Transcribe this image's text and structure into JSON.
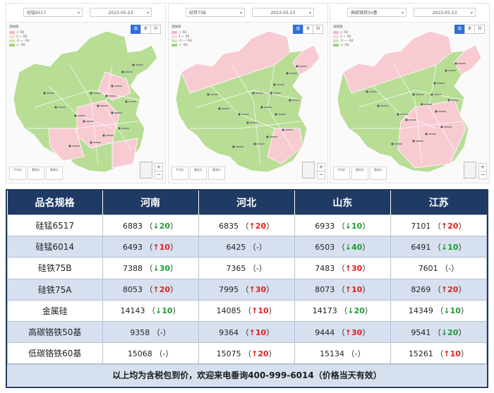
{
  "maps": [
    {
      "product_select": "硅锰6517",
      "date_select": "2023-05-23",
      "view_buttons": [
        "图",
        "表",
        "列"
      ],
      "legend_title": "涨幅值",
      "legend": [
        {
          "label": "> 50",
          "color": "#f4b8c0"
        },
        {
          "label": "1 ~ 50",
          "color": "#fbd9de"
        },
        {
          "label": "-1 ~ -50",
          "color": "#cfe8b4"
        },
        {
          "label": "< -50",
          "color": "#a5d27e"
        }
      ],
      "stats": [
        "平均价",
        "最低价",
        "最高价"
      ]
    },
    {
      "product_select": "硅铁75B",
      "date_select": "2023-05-23",
      "view_buttons": [
        "图",
        "表",
        "列"
      ],
      "legend_title": "涨幅值",
      "legend": [
        {
          "label": "> 50",
          "color": "#f4b8c0"
        },
        {
          "label": "1 ~ 50",
          "color": "#fbd9de"
        },
        {
          "label": "-1 ~ -50",
          "color": "#cfe8b4"
        },
        {
          "label": "< -50",
          "color": "#a5d27e"
        }
      ],
      "stats": [
        "平均价",
        "最低价",
        "最高价"
      ]
    },
    {
      "product_select": "高碳铬铁50基",
      "date_select": "2023-05-23",
      "view_buttons": [
        "图",
        "表",
        "列"
      ],
      "legend_title": "涨幅值",
      "legend": [
        {
          "label": "> 50",
          "color": "#f4b8c0"
        },
        {
          "label": "1 ~ 50",
          "color": "#fbd9de"
        },
        {
          "label": "-1 ~ -50",
          "color": "#cfe8b4"
        },
        {
          "label": "< -50",
          "color": "#a5d27e"
        }
      ],
      "stats": [
        "平均价",
        "最低价",
        "最高价"
      ]
    }
  ],
  "chart_data": {
    "type": "table",
    "columns": [
      "品名规格",
      "河南",
      "河北",
      "山东",
      "江苏"
    ],
    "rows": [
      {
        "name": "硅锰6517",
        "cells": [
          {
            "price": "6883",
            "dir": "down",
            "chg": "20"
          },
          {
            "price": "6835",
            "dir": "up",
            "chg": "20"
          },
          {
            "price": "6933",
            "dir": "down",
            "chg": "10"
          },
          {
            "price": "7101",
            "dir": "up",
            "chg": "20"
          }
        ]
      },
      {
        "name": "硅锰6014",
        "cells": [
          {
            "price": "6493",
            "dir": "up",
            "chg": "10"
          },
          {
            "price": "6425",
            "dir": "flat",
            "chg": "-"
          },
          {
            "price": "6503",
            "dir": "down",
            "chg": "40"
          },
          {
            "price": "6491",
            "dir": "down",
            "chg": "10"
          }
        ]
      },
      {
        "name": "硅铁75B",
        "cells": [
          {
            "price": "7388",
            "dir": "down",
            "chg": "30"
          },
          {
            "price": "7365",
            "dir": "flat",
            "chg": "-"
          },
          {
            "price": "7483",
            "dir": "up",
            "chg": "30"
          },
          {
            "price": "7601",
            "dir": "flat",
            "chg": "-"
          }
        ]
      },
      {
        "name": "硅铁75A",
        "cells": [
          {
            "price": "8053",
            "dir": "up",
            "chg": "20"
          },
          {
            "price": "7995",
            "dir": "up",
            "chg": "30"
          },
          {
            "price": "8073",
            "dir": "up",
            "chg": "10"
          },
          {
            "price": "8269",
            "dir": "up",
            "chg": "20"
          }
        ]
      },
      {
        "name": "金属硅",
        "cells": [
          {
            "price": "14143",
            "dir": "down",
            "chg": "10"
          },
          {
            "price": "14085",
            "dir": "up",
            "chg": "10"
          },
          {
            "price": "14173",
            "dir": "down",
            "chg": "20"
          },
          {
            "price": "14349",
            "dir": "down",
            "chg": "10"
          }
        ]
      },
      {
        "name": "高碳铬铁50基",
        "cells": [
          {
            "price": "9358",
            "dir": "flat",
            "chg": "-"
          },
          {
            "price": "9364",
            "dir": "up",
            "chg": "10"
          },
          {
            "price": "9444",
            "dir": "up",
            "chg": "30"
          },
          {
            "price": "9541",
            "dir": "down",
            "chg": "20"
          }
        ]
      },
      {
        "name": "低碳铬铁60基",
        "cells": [
          {
            "price": "15068",
            "dir": "flat",
            "chg": "-"
          },
          {
            "price": "15075",
            "dir": "up",
            "chg": "20"
          },
          {
            "price": "15134",
            "dir": "flat",
            "chg": "-"
          },
          {
            "price": "15261",
            "dir": "up",
            "chg": "10"
          }
        ]
      }
    ],
    "footer": "以上均为含税包到价，欢迎来电垂询400-999-6014（价格当天有效）"
  },
  "colors": {
    "header_bg": "#1f3a63",
    "alt_row_bg": "#d6e0ef",
    "up": "#e0201e",
    "down": "#1c9b33",
    "map_green": "#b8dd95",
    "map_pink": "#f8cbd2"
  }
}
